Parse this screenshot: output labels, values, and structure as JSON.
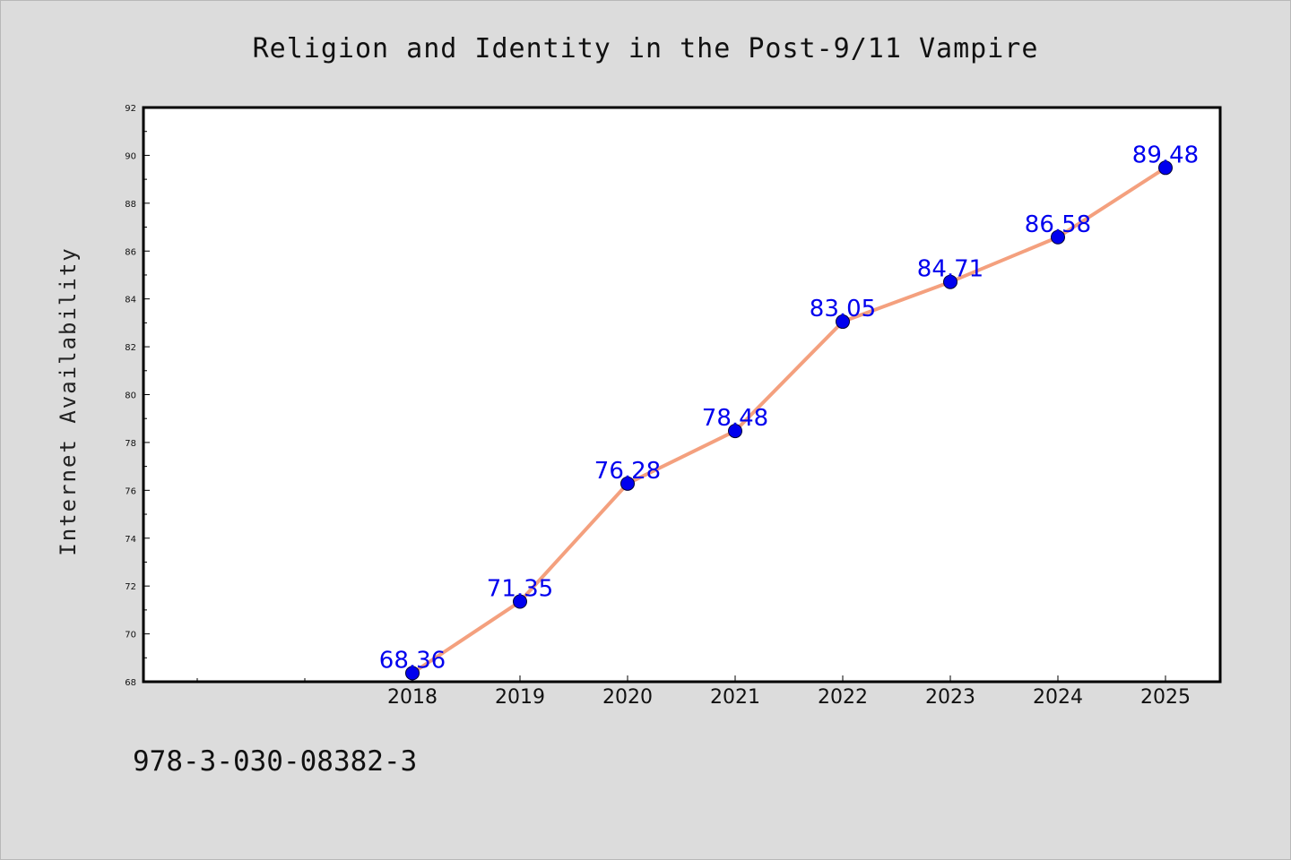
{
  "chart_data": {
    "type": "line",
    "title": "Religion and Identity in the Post-9/11 Vampire",
    "xlabel": "",
    "ylabel": "Internet Availability",
    "x": [
      "2018",
      "2019",
      "2020",
      "2021",
      "2022",
      "2023",
      "2024",
      "2025"
    ],
    "series": [
      {
        "values": [
          68.36,
          71.35,
          76.28,
          78.48,
          83.05,
          84.71,
          86.58,
          89.48
        ]
      }
    ],
    "data_labels": [
      "68.36",
      "71.35",
      "76.28",
      "78.48",
      "83.05",
      "84.71",
      "86.58",
      "89.48"
    ],
    "ylim": [
      68,
      92
    ],
    "yticks": [
      "68",
      "70",
      "72",
      "74",
      "76",
      "78",
      "80",
      "82",
      "84",
      "86",
      "88",
      "90",
      "92"
    ],
    "line_color": "#f4a07e",
    "marker_color": "#0000ee",
    "label_color": "#0000ee",
    "grid": false,
    "legend": "none"
  },
  "footer": {
    "isbn": "978-3-030-08382-3"
  }
}
